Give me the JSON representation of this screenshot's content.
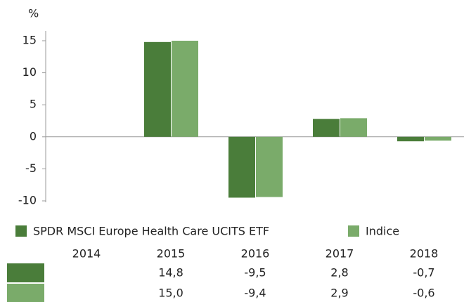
{
  "chart_data": {
    "type": "bar",
    "y_label": "%",
    "categories": [
      "2014",
      "2015",
      "2016",
      "2017",
      "2018"
    ],
    "series": [
      {
        "name": "SPDR MSCI Europe Health Care UCITS ETF",
        "color": "#4a7d3a",
        "values": [
          null,
          14.8,
          -9.5,
          2.8,
          -0.7
        ],
        "value_labels": [
          null,
          "14,8",
          "-9,5",
          "2,8",
          "-0,7"
        ]
      },
      {
        "name": "Indice",
        "color": "#7aab6a",
        "values": [
          null,
          15.0,
          -9.4,
          2.9,
          -0.6
        ],
        "value_labels": [
          null,
          "15,0",
          "-9,4",
          "2,9",
          "-0,6"
        ]
      }
    ],
    "ylim": [
      -10,
      15
    ],
    "yticks": [
      15,
      10,
      5,
      0,
      -5,
      -10
    ]
  }
}
